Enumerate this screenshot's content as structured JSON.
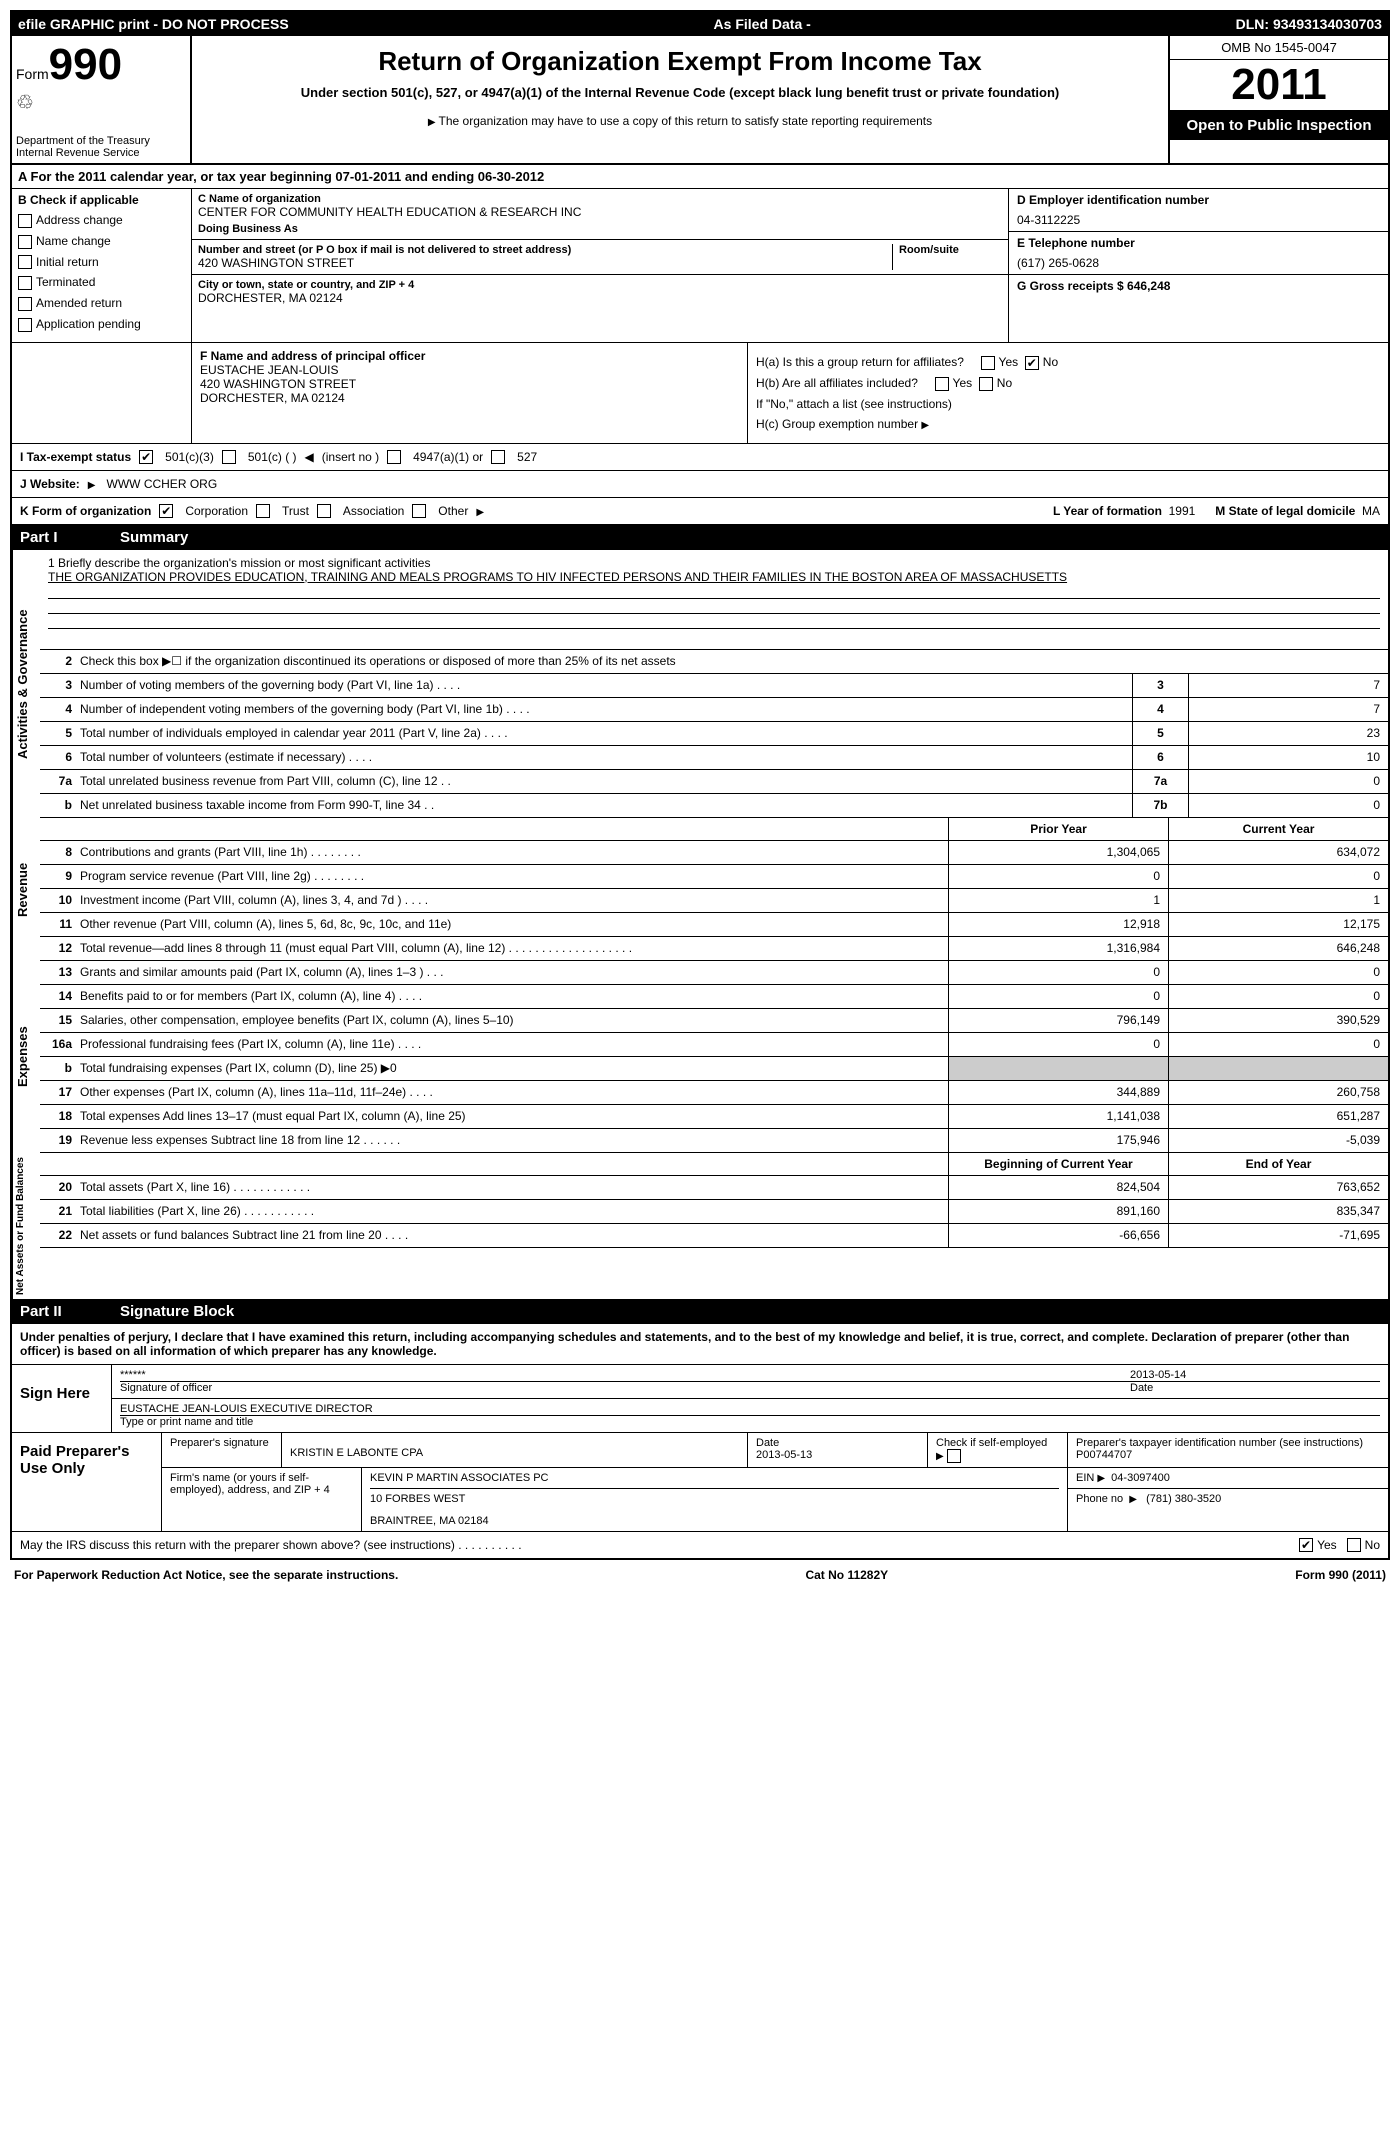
{
  "top_bar": {
    "left": "efile GRAPHIC print - DO NOT PROCESS",
    "center": "As Filed Data -",
    "right": "DLN: 93493134030703"
  },
  "header": {
    "form_prefix": "Form",
    "form_number": "990",
    "dept": "Department of the Treasury",
    "irs": "Internal Revenue Service",
    "title": "Return of Organization Exempt From Income Tax",
    "subtitle": "Under section 501(c), 527, or 4947(a)(1) of the Internal Revenue Code (except black lung benefit trust or private foundation)",
    "note": "The organization may have to use a copy of this return to satisfy state reporting requirements",
    "omb": "OMB No 1545-0047",
    "year": "2011",
    "inspect": "Open to Public Inspection"
  },
  "row_a": "A  For the 2011 calendar year, or tax year beginning 07-01-2011    and ending 06-30-2012",
  "box_b": {
    "label": "B Check if applicable",
    "items": [
      "Address change",
      "Name change",
      "Initial return",
      "Terminated",
      "Amended return",
      "Application pending"
    ]
  },
  "box_c": {
    "name_label": "C Name of organization",
    "name": "CENTER FOR COMMUNITY HEALTH EDUCATION & RESEARCH INC",
    "dba_label": "Doing Business As",
    "dba": "",
    "street_label": "Number and street (or P O  box if mail is not delivered to street address)",
    "room_label": "Room/suite",
    "street": "420 WASHINGTON STREET",
    "city_label": "City or town, state or country, and ZIP + 4",
    "city": "DORCHESTER, MA  02124"
  },
  "box_d": {
    "ein_label": "D Employer identification number",
    "ein": "04-3112225",
    "phone_label": "E Telephone number",
    "phone": "(617) 265-0628",
    "gross_label": "G Gross receipts $ 646,248"
  },
  "box_f": {
    "label": "F  Name and address of principal officer",
    "name": "EUSTACHE JEAN-LOUIS",
    "street": "420 WASHINGTON STREET",
    "city": "DORCHESTER, MA  02124"
  },
  "box_h": {
    "ha": "H(a)  Is this a group return for affiliates?",
    "hb": "H(b)  Are all affiliates included?",
    "hb_note": "If \"No,\" attach a list  (see instructions)",
    "hc": "H(c)   Group exemption number"
  },
  "row_i": {
    "label": "I   Tax-exempt status",
    "opts": [
      "501(c)(3)",
      "501(c) (   )",
      "(insert no )",
      "4947(a)(1) or",
      "527"
    ]
  },
  "row_j": {
    "label": "J   Website:",
    "value": "WWW CCHER ORG"
  },
  "row_k": {
    "label": "K Form of organization",
    "opts": [
      "Corporation",
      "Trust",
      "Association",
      "Other"
    ],
    "year_label": "L Year of formation",
    "year_val": "1991",
    "state_label": "M State of legal domicile",
    "state_val": "MA"
  },
  "part1": {
    "num": "Part I",
    "title": "Summary"
  },
  "mission": {
    "label": "1   Briefly describe the organization's mission or most significant activities",
    "text": "THE ORGANIZATION PROVIDES EDUCATION, TRAINING AND MEALS PROGRAMS TO HIV INFECTED PERSONS AND THEIR FAMILIES IN THE BOSTON AREA OF MASSACHUSETTS"
  },
  "governance": {
    "side": "Activities & Governance",
    "lines": [
      {
        "n": "2",
        "d": "Check this box ▶☐ if the organization discontinued its operations or disposed of more than 25% of its net assets",
        "bl": "",
        "bv": ""
      },
      {
        "n": "3",
        "d": "Number of voting members of the governing body (Part VI, line 1a)  .    .    .    .",
        "bl": "3",
        "bv": "7"
      },
      {
        "n": "4",
        "d": "Number of independent voting members of the governing body (Part VI, line 1b)    .    .    .    .",
        "bl": "4",
        "bv": "7"
      },
      {
        "n": "5",
        "d": "Total number of individuals employed in calendar year 2011 (Part V, line 2a)    .    .    .    .",
        "bl": "5",
        "bv": "23"
      },
      {
        "n": "6",
        "d": "Total number of volunteers (estimate if necessary)    .    .    .    .",
        "bl": "6",
        "bv": "10"
      },
      {
        "n": "7a",
        "d": "Total unrelated business revenue from Part VIII, column (C), line 12   .    .",
        "bl": "7a",
        "bv": "0"
      },
      {
        "n": "b",
        "d": "Net unrelated business taxable income from Form 990-T, line 34   .    .",
        "bl": "7b",
        "bv": "0"
      }
    ]
  },
  "data_headers": {
    "prior": "Prior Year",
    "current": "Current Year",
    "begin": "Beginning of Current Year",
    "end": "End of Year"
  },
  "revenue": {
    "side": "Revenue",
    "lines": [
      {
        "n": "8",
        "d": "Contributions and grants (Part VIII, line 1h)   .    .    .    .    .    .    .    .",
        "py": "1,304,065",
        "cy": "634,072"
      },
      {
        "n": "9",
        "d": "Program service revenue (Part VIII, line 2g)   .    .    .    .    .    .    .    .",
        "py": "0",
        "cy": "0"
      },
      {
        "n": "10",
        "d": "Investment income (Part VIII, column (A), lines 3, 4, and 7d )  .    .    .    .",
        "py": "1",
        "cy": "1"
      },
      {
        "n": "11",
        "d": "Other revenue (Part VIII, column (A), lines 5, 6d, 8c, 9c, 10c, and 11e)",
        "py": "12,918",
        "cy": "12,175"
      },
      {
        "n": "12",
        "d": "Total revenue—add lines 8 through 11 (must equal Part VIII, column (A), line 12)  .    .    .    .    .    .    .    .    .    .    .    .    .    .    .    .    .    .    .",
        "py": "1,316,984",
        "cy": "646,248"
      }
    ]
  },
  "expenses": {
    "side": "Expenses",
    "lines": [
      {
        "n": "13",
        "d": "Grants and similar amounts paid (Part IX, column (A), lines 1–3 )   .    .    .",
        "py": "0",
        "cy": "0"
      },
      {
        "n": "14",
        "d": "Benefits paid to or for members (Part IX, column (A), line 4)   .    .    .    .",
        "py": "0",
        "cy": "0"
      },
      {
        "n": "15",
        "d": "Salaries, other compensation, employee benefits (Part IX, column (A), lines 5–10)",
        "py": "796,149",
        "cy": "390,529"
      },
      {
        "n": "16a",
        "d": "Professional fundraising fees (Part IX, column (A), line 11e)   .    .    .    .",
        "py": "0",
        "cy": "0"
      },
      {
        "n": "b",
        "d": "Total fundraising expenses (Part IX, column (D), line 25) ▶0",
        "py": "grey",
        "cy": "grey"
      },
      {
        "n": "17",
        "d": "Other expenses (Part IX, column (A), lines 11a–11d, 11f–24e)   .    .    .    .",
        "py": "344,889",
        "cy": "260,758"
      },
      {
        "n": "18",
        "d": "Total expenses  Add lines 13–17 (must equal Part IX, column (A), line 25)",
        "py": "1,141,038",
        "cy": "651,287"
      },
      {
        "n": "19",
        "d": "Revenue less expenses  Subtract line 18 from line 12  .    .    .    .    .    .",
        "py": "175,946",
        "cy": "-5,039"
      }
    ]
  },
  "netassets": {
    "side": "Net Assets or Fund Balances",
    "lines": [
      {
        "n": "20",
        "d": "Total assets (Part X, line 16)    .    .    .    .    .    .    .    .    .    .    .    .",
        "py": "824,504",
        "cy": "763,652"
      },
      {
        "n": "21",
        "d": "Total liabilities (Part X, line 26)    .    .    .    .    .    .    .    .    .    .    .",
        "py": "891,160",
        "cy": "835,347"
      },
      {
        "n": "22",
        "d": "Net assets or fund balances  Subtract line 21 from line 20   .    .    .    .",
        "py": "-66,656",
        "cy": "-71,695"
      }
    ]
  },
  "part2": {
    "num": "Part II",
    "title": "Signature Block"
  },
  "perjury": "Under penalties of perjury, I declare that I have examined this return, including accompanying schedules and statements, and to the best of my knowledge and belief, it is true, correct, and complete. Declaration of preparer (other than officer) is based on all information of which preparer has any knowledge.",
  "sign": {
    "label": "Sign Here",
    "stars": "******",
    "sig_label": "Signature of officer",
    "date": "2013-05-14",
    "date_label": "Date",
    "name": "EUSTACHE JEAN-LOUIS EXECUTIVE DIRECTOR",
    "name_label": "Type or print name and title"
  },
  "preparer": {
    "label": "Paid Preparer's Use Only",
    "sig_label": "Preparer's signature",
    "name": "KRISTIN E LABONTE CPA",
    "date_label": "Date",
    "date": "2013-05-13",
    "self_label": "Check if self-employed",
    "ptin_label": "Preparer's taxpayer identification number (see instructions)",
    "ptin": "P00744707",
    "firm_label": "Firm's name (or yours if self-employed), address, and ZIP + 4",
    "firm_name": "KEVIN P MARTIN ASSOCIATES PC",
    "firm_addr1": "10 FORBES WEST",
    "firm_addr2": "BRAINTREE, MA  02184",
    "ein_label": "EIN",
    "ein": "04-3097400",
    "phone_label": "Phone no",
    "phone": "(781) 380-3520"
  },
  "discuss": "May the IRS discuss this return with the preparer shown above? (see instructions)    .    .    .    .    .    .    .    .    .    .",
  "footer": {
    "left": "For Paperwork Reduction Act Notice, see the separate instructions.",
    "center": "Cat No 11282Y",
    "right": "Form 990 (2011)"
  }
}
